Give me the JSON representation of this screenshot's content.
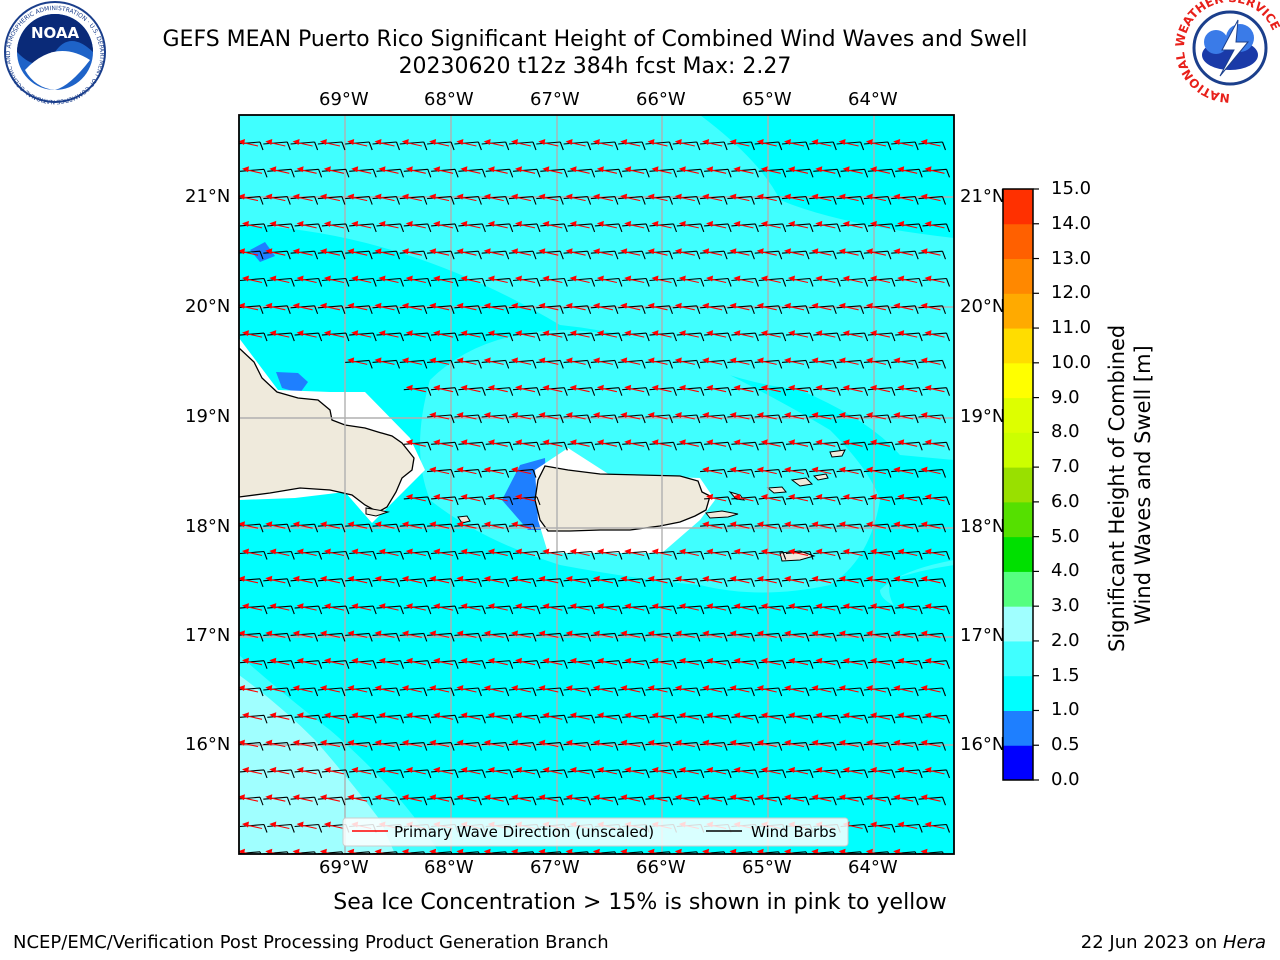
{
  "header": {
    "title_line1": "GEFS MEAN Puerto Rico Significant Height of Combined Wind Waves and Swell",
    "title_line2": "20230620 t12z 384h fcst   Max: 2.27"
  },
  "logos": {
    "noaa": "NOAA",
    "noaa_ring": "NATIONAL OCEANIC AND ATMOSPHERIC ADMINISTRATION · U.S. DEPARTMENT OF COMMERCE",
    "nws_ring": "NATIONAL WEATHER SERVICE"
  },
  "map": {
    "lon_labels": [
      "69°W",
      "68°W",
      "67°W",
      "66°W",
      "65°W",
      "64°W"
    ],
    "lat_labels": [
      "21°N",
      "20°N",
      "19°N",
      "18°N",
      "17°N",
      "16°N"
    ],
    "legend": {
      "wave_direction": "Primary Wave Direction (unscaled)",
      "wind_barbs": "Wind Barbs"
    },
    "colors": {
      "ocean_main": "#00ffff",
      "ocean_light": "#40ffff",
      "ocean_pale": "#a0ffff",
      "shallow": "#1e7fff",
      "land": "#efeadc",
      "wave_arrow": "#ff0000",
      "wind_barb": "#000000"
    }
  },
  "colorbar": {
    "label": "Significant Height of Combined Wind Waves and Swell [m]",
    "ticks": [
      "15.0",
      "14.0",
      "13.0",
      "12.0",
      "11.0",
      "10.0",
      "9.0",
      "8.0",
      "7.0",
      "6.0",
      "5.0",
      "4.0",
      "3.0",
      "2.0",
      "1.5",
      "1.0",
      "0.5",
      "0.0"
    ],
    "colors": [
      "#0000ff",
      "#1e7fff",
      "#00ffff",
      "#40ffff",
      "#a0ffff",
      "#55ff80",
      "#00e000",
      "#55e000",
      "#99e000",
      "#ccff00",
      "#ddff00",
      "#ffff00",
      "#ffdd00",
      "#ffaa00",
      "#ff8800",
      "#ff6000",
      "#ff3000",
      "#ff0000"
    ]
  },
  "notes": {
    "sea_ice": "Sea Ice Concentration > 15% is shown in pink to yellow"
  },
  "footer": {
    "left": "NCEP/EMC/Verification Post Processing Product Generation Branch",
    "date": "22 Jun 2023 on ",
    "machine": "Hera"
  }
}
